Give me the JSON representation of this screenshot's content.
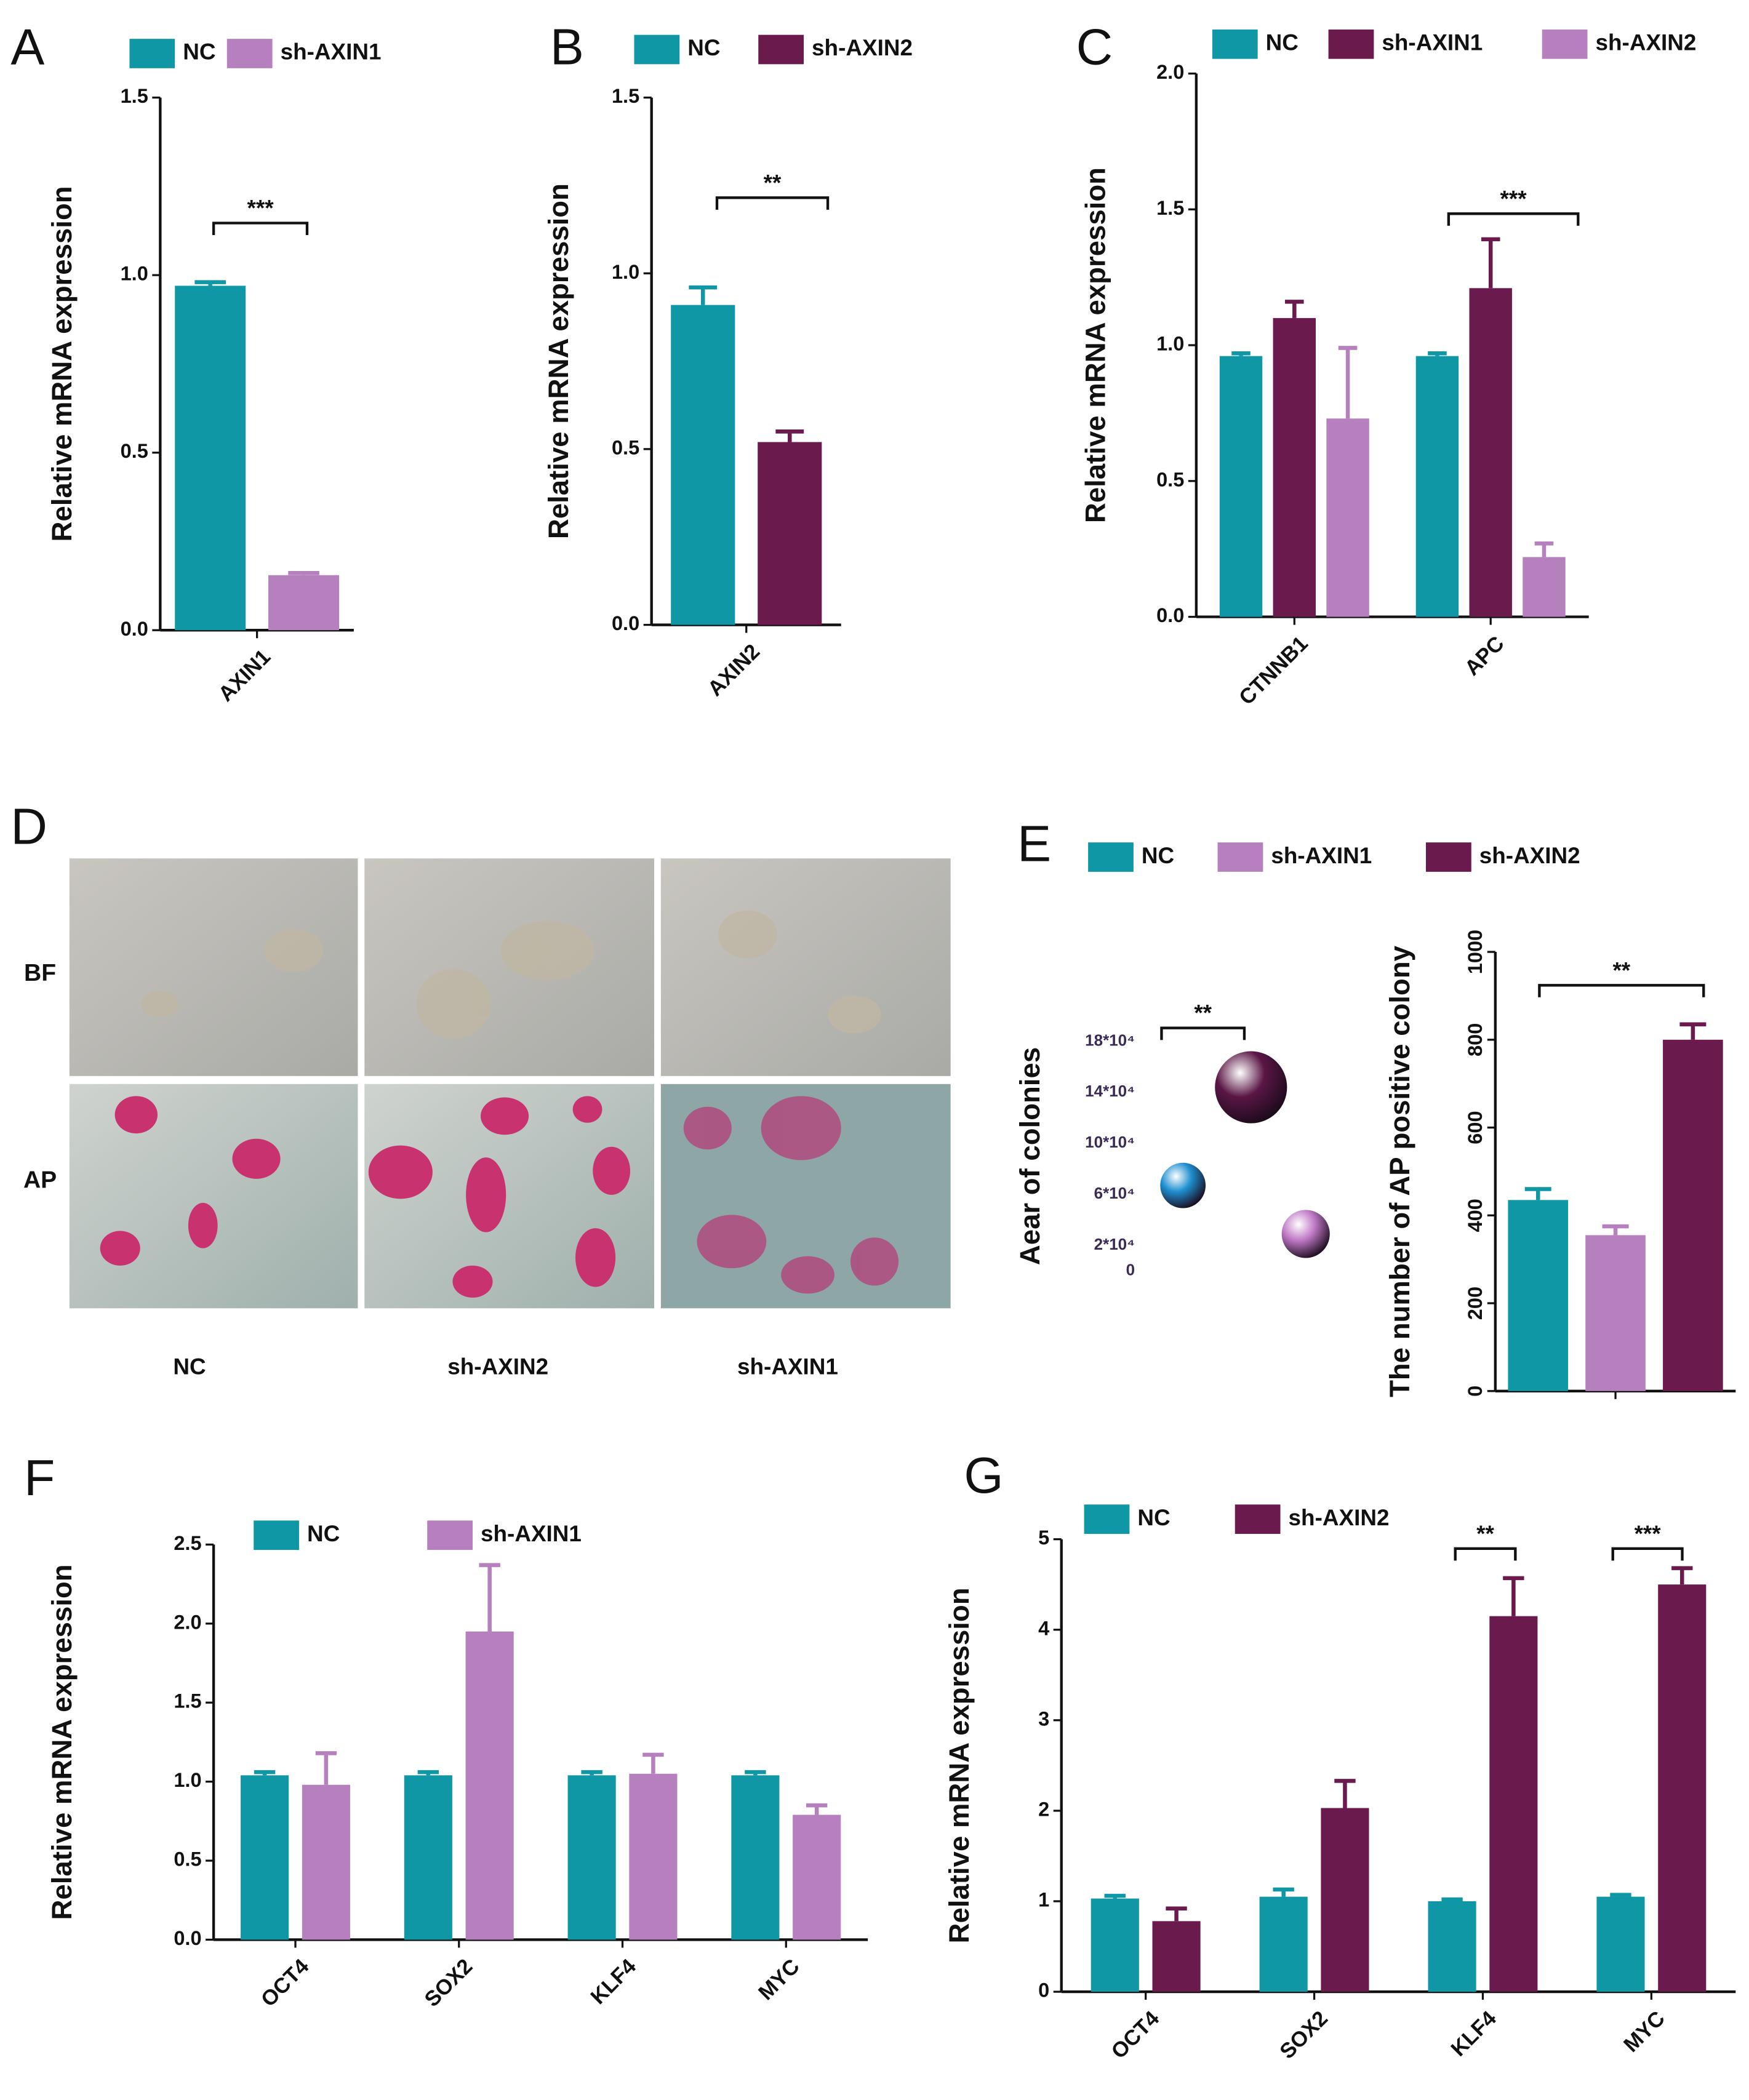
{
  "image_panel": {
    "label": "D",
    "rows": [
      "BF",
      "AP"
    ],
    "columns": [
      "NC",
      "sh-AXIN2",
      "sh-AXIN1"
    ]
  },
  "chart_data": [
    {
      "type": "bar",
      "panel": "A",
      "ylabel": "Relative mRNA expression",
      "categories": [
        "AXIN1"
      ],
      "series": [
        {
          "name": "NC",
          "color": "#0f97a5",
          "values": [
            0.97
          ],
          "errors": [
            0.01
          ]
        },
        {
          "name": "sh-AXIN1",
          "color": "#b67fbd",
          "values": [
            0.155
          ],
          "errors": [
            0.006
          ]
        }
      ],
      "ylim": [
        0,
        1.5
      ],
      "yticks": [
        {
          "value": 0,
          "label": "0.0"
        },
        0.5,
        {
          "value": 1,
          "label": "1.0"
        },
        1.5
      ],
      "annotations": [
        "***"
      ]
    },
    {
      "type": "bar",
      "panel": "B",
      "ylabel": "Relative mRNA expression",
      "categories": [
        "AXIN2"
      ],
      "series": [
        {
          "name": "NC",
          "color": "#0f97a5",
          "values": [
            0.91
          ],
          "errors": [
            0.05
          ]
        },
        {
          "name": "sh-AXIN2",
          "color": "#6b1a4d",
          "values": [
            0.52
          ],
          "errors": [
            0.03
          ]
        }
      ],
      "ylim": [
        0,
        1.5
      ],
      "yticks": [
        {
          "value": 0,
          "label": "0.0"
        },
        0.5,
        {
          "value": 1,
          "label": "1.0"
        },
        1.5
      ],
      "annotations": [
        "**"
      ]
    },
    {
      "type": "bar",
      "panel": "C",
      "ylabel": "Relative mRNA expression",
      "categories": [
        "CTNNB1",
        "APC"
      ],
      "series": [
        {
          "name": "NC",
          "color": "#0f97a5",
          "values": [
            0.96,
            0.96
          ],
          "errors": [
            0.01,
            0.01
          ]
        },
        {
          "name": "sh-AXIN1",
          "color": "#6b1a4d",
          "values": [
            1.1,
            1.21
          ],
          "errors": [
            0.06,
            0.18
          ]
        },
        {
          "name": "sh-AXIN2",
          "color": "#b67fbd",
          "values": [
            0.73,
            0.22
          ],
          "errors": [
            0.26,
            0.05
          ]
        }
      ],
      "ylim": [
        0,
        2
      ],
      "yticks": [
        {
          "value": 0,
          "label": "0.0"
        },
        0.5,
        {
          "value": 1,
          "label": "1.0"
        },
        1.5,
        {
          "value": 2,
          "label": "2.0"
        }
      ],
      "annotations": [
        "***"
      ]
    },
    {
      "type": "bubble",
      "panel": "E",
      "ylabel": "Aear of colonies",
      "values": [
        67000,
        144000,
        29000
      ],
      "sizes": [
        17,
        27,
        18
      ],
      "colors": [
        "#1f8fd0",
        "#5a1646",
        "#c07ac6"
      ],
      "ylim": [
        0,
        180000
      ],
      "yticks": [
        0,
        {
          "value": 20000,
          "label": "2*10⁴"
        },
        {
          "value": 60000,
          "label": "6*10⁴"
        },
        {
          "value": 100000,
          "label": "10*10⁴"
        },
        {
          "value": 140000,
          "label": "14*10⁴"
        },
        {
          "value": 180000,
          "label": "18*10⁴"
        }
      ],
      "annotations": [
        "**"
      ]
    },
    {
      "type": "bar",
      "ylabel": "The number of AP positive colony",
      "categories": [
        null
      ],
      "series": [
        {
          "name": "NC",
          "color": "#0f97a5",
          "values": [
            435
          ],
          "errors": [
            25
          ]
        },
        {
          "name": "sh-AXIN1",
          "color": "#b67fbd",
          "values": [
            355
          ],
          "errors": [
            20
          ]
        },
        {
          "name": "sh-AXIN2",
          "color": "#6b1a4d",
          "values": [
            800
          ],
          "errors": [
            35
          ]
        }
      ],
      "ylim": [
        0,
        1000
      ],
      "yticks": [
        0,
        200,
        400,
        600,
        800,
        1000
      ],
      "annotations": [
        "**"
      ]
    },
    {
      "type": "bar",
      "panel": "F",
      "ylabel": "Relative mRNA expression",
      "categories": [
        "OCT4",
        "SOX2",
        "KLF4",
        "MYC"
      ],
      "series": [
        {
          "name": "NC",
          "color": "#0f97a5",
          "values": [
            1.04,
            1.04,
            1.04,
            1.04
          ],
          "errors": [
            0.02,
            0.02,
            0.02,
            0.02
          ]
        },
        {
          "name": "sh-AXIN1",
          "color": "#b67fbd",
          "values": [
            0.98,
            1.95,
            1.05,
            0.79
          ],
          "errors": [
            0.2,
            0.42,
            0.12,
            0.06
          ]
        }
      ],
      "ylim": [
        0,
        2.5
      ],
      "yticks": [
        {
          "value": 0,
          "label": "0.0"
        },
        0.5,
        {
          "value": 1,
          "label": "1.0"
        },
        1.5,
        {
          "value": 2,
          "label": "2.0"
        },
        2.5
      ],
      "annotations": []
    },
    {
      "type": "bar",
      "panel": "G",
      "ylabel": "Relative mRNA expression",
      "categories": [
        "OCT4",
        "SOX2",
        "KLF4",
        "MYC"
      ],
      "series": [
        {
          "name": "NC",
          "color": "#0f97a5",
          "values": [
            1.03,
            1.05,
            1.0,
            1.05
          ],
          "errors": [
            0.03,
            0.08,
            0.02,
            0.02
          ]
        },
        {
          "name": "sh-AXIN2",
          "color": "#6b1a4d",
          "values": [
            0.78,
            2.03,
            4.15,
            4.5
          ],
          "errors": [
            0.14,
            0.3,
            0.42,
            0.18
          ]
        }
      ],
      "ylim": [
        0,
        5
      ],
      "yticks": [
        0,
        1,
        2,
        3,
        4,
        5
      ],
      "annotations": [
        "**",
        "***"
      ]
    }
  ]
}
